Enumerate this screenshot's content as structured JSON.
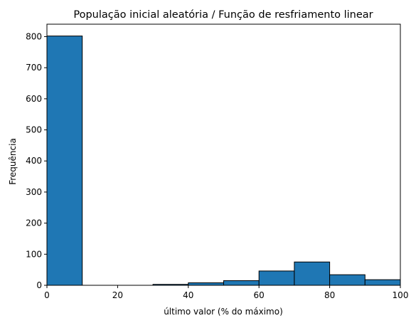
{
  "chart_data": {
    "type": "bar",
    "title": "População inicial aleatória / Função de resfriamento linear",
    "xlabel": "último valor (% do máximo)",
    "ylabel": "Frequência",
    "xlim": [
      0,
      100
    ],
    "ylim": [
      0,
      840
    ],
    "xticks": [
      0,
      20,
      40,
      60,
      80,
      100
    ],
    "yticks": [
      0,
      100,
      200,
      300,
      400,
      500,
      600,
      700,
      800
    ],
    "bins": [
      {
        "x0": 0,
        "x1": 10,
        "value": 802
      },
      {
        "x0": 10,
        "x1": 20,
        "value": 0
      },
      {
        "x0": 20,
        "x1": 30,
        "value": 0
      },
      {
        "x0": 30,
        "x1": 40,
        "value": 3
      },
      {
        "x0": 40,
        "x1": 50,
        "value": 8
      },
      {
        "x0": 50,
        "x1": 60,
        "value": 15
      },
      {
        "x0": 60,
        "x1": 70,
        "value": 46
      },
      {
        "x0": 70,
        "x1": 80,
        "value": 75
      },
      {
        "x0": 80,
        "x1": 90,
        "value": 34
      },
      {
        "x0": 90,
        "x1": 100,
        "value": 18
      }
    ],
    "bar_color": "#1f77b4",
    "edge_color": "#000000",
    "grid": false,
    "legend": "none"
  }
}
